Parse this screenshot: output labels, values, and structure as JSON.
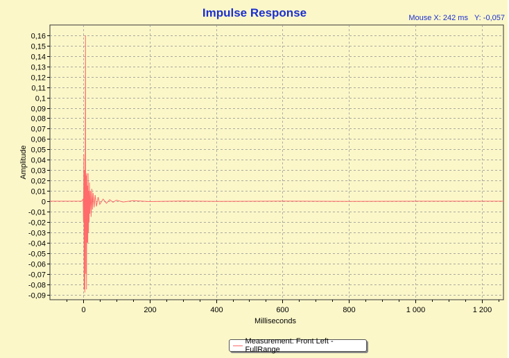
{
  "window": {
    "title": "Impulse Response",
    "mouse_label": "Mouse X:",
    "mouse_x": "242 ms",
    "mouse_y_label": "Y:",
    "mouse_y": "-0,057"
  },
  "legend": {
    "label": "Measurement: Front Left - FullRange"
  },
  "colors": {
    "background": "#fbf7c9",
    "title": "#1b2fcf",
    "trace": "#ff6a6a",
    "grid": "#8f8f8f"
  },
  "chart_data": {
    "type": "line",
    "title": "Impulse Response",
    "xlabel": "Milliseconds",
    "ylabel": "Amplitude",
    "xlim": [
      -100,
      1265
    ],
    "ylim": [
      -0.095,
      0.17
    ],
    "grid": true,
    "legend_position": "bottom-center",
    "xticks": [
      0,
      200,
      400,
      600,
      800,
      1000,
      1200
    ],
    "xtick_labels": [
      "0",
      "200",
      "400",
      "600",
      "800",
      "1 000",
      "1 200"
    ],
    "yticks": [
      0.16,
      0.15,
      0.14,
      0.13,
      0.12,
      0.11,
      0.1,
      0.09,
      0.08,
      0.07,
      0.06,
      0.05,
      0.04,
      0.03,
      0.02,
      0.01,
      0,
      -0.01,
      -0.02,
      -0.03,
      -0.04,
      -0.05,
      -0.06,
      -0.07,
      -0.08,
      -0.09
    ],
    "ytick_labels": [
      "0,16",
      "0,15",
      "0,14",
      "0,13",
      "0,12",
      "0,11",
      "0,1",
      "0,09",
      "0,08",
      "0,07",
      "0,06",
      "0,05",
      "0,04",
      "0,03",
      "0,02",
      "0,01",
      "0",
      "-0,01",
      "-0,02",
      "-0,03",
      "-0,04",
      "-0,05",
      "-0,06",
      "-0,07",
      "-0,08",
      "-0,09"
    ],
    "series": [
      {
        "name": "Measurement: Front Left - FullRange",
        "x": [
          -100,
          -50,
          -5,
          0,
          1,
          2,
          3,
          4,
          5,
          6,
          7,
          8,
          9,
          10,
          11,
          12,
          13,
          14,
          15,
          16,
          17,
          18,
          19,
          20,
          22,
          24,
          26,
          28,
          30,
          33,
          36,
          40,
          45,
          50,
          60,
          70,
          80,
          90,
          100,
          120,
          150,
          200,
          300,
          400,
          600,
          800,
          1000,
          1200,
          1265
        ],
        "y": [
          0,
          0,
          0,
          0.002,
          -0.02,
          0.045,
          -0.085,
          0.03,
          -0.088,
          0.012,
          0.16,
          -0.07,
          0.025,
          -0.085,
          0.027,
          -0.04,
          0.015,
          -0.04,
          0.027,
          -0.03,
          0.01,
          -0.02,
          0.018,
          -0.012,
          0.01,
          -0.015,
          0.012,
          -0.008,
          0.008,
          -0.006,
          0.006,
          -0.005,
          0.004,
          -0.003,
          0.002,
          -0.002,
          0.0015,
          -0.001,
          0.001,
          -0.0007,
          0.0005,
          -0.0003,
          0.0002,
          -0.0002,
          0.0001,
          -0.0001,
          0,
          0,
          0
        ]
      }
    ]
  }
}
